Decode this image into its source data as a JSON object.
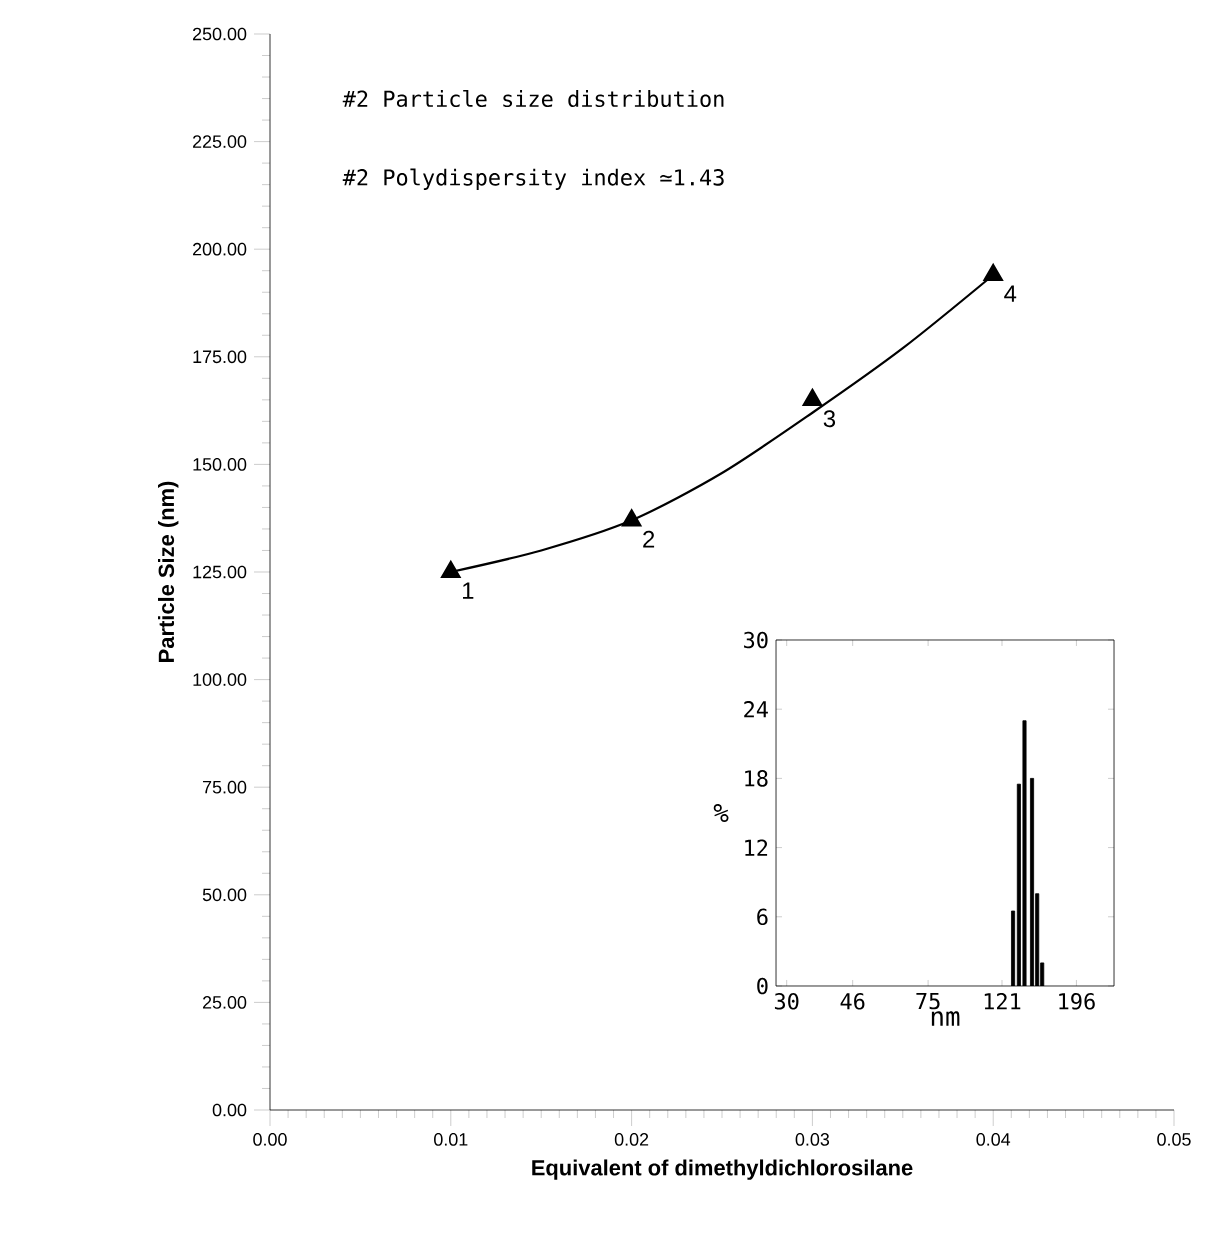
{
  "chart_data": [
    {
      "type": "scatter",
      "xlabel": "Equivalent of dimethyldichlorosilane",
      "ylabel": "Particle Size (nm)",
      "xlim": [
        0,
        0.05
      ],
      "ylim": [
        0,
        250
      ],
      "xticks": [
        {
          "value": 0,
          "label": "0.00"
        },
        {
          "value": 0.01,
          "label": "0.01"
        },
        {
          "value": 0.02,
          "label": "0.02"
        },
        {
          "value": 0.03,
          "label": "0.03"
        },
        {
          "value": 0.04,
          "label": "0.04"
        },
        {
          "value": 0.05,
          "label": "0.05"
        }
      ],
      "yticks": [
        {
          "value": 0,
          "label": "0.00"
        },
        {
          "value": 25,
          "label": "25.00"
        },
        {
          "value": 50,
          "label": "50.00"
        },
        {
          "value": 75,
          "label": "75.00"
        },
        {
          "value": 100,
          "label": "100.00"
        },
        {
          "value": 125,
          "label": "125.00"
        },
        {
          "value": 150,
          "label": "150.00"
        },
        {
          "value": 175,
          "label": "175.00"
        },
        {
          "value": 200,
          "label": "200.00"
        },
        {
          "value": 225,
          "label": "225.00"
        },
        {
          "value": 250,
          "label": "250.00"
        }
      ],
      "marker": "triangle",
      "series": [
        {
          "type": "scatter",
          "color": "#000000",
          "x": [
            0.01,
            0.02,
            0.03,
            0.04
          ],
          "values": [
            125,
            137,
            165,
            194
          ]
        },
        {
          "type": "line",
          "color": "#000000",
          "marker": "none",
          "x": [
            0.01,
            0.015,
            0.02,
            0.025,
            0.03,
            0.035,
            0.04
          ],
          "values": [
            125,
            130,
            137,
            148,
            162,
            177,
            194
          ]
        }
      ],
      "annotations": [
        "#2 Particle size distribution",
        "#2 Polydispersity index ≃1.43",
        {
          "text": "1",
          "x": 0.01,
          "y": 125
        },
        {
          "text": "2",
          "x": 0.02,
          "y": 137
        },
        {
          "text": "3",
          "x": 0.03,
          "y": 165
        },
        {
          "text": "4",
          "x": 0.04,
          "y": 194
        }
      ]
    },
    {
      "type": "bar",
      "xlabel": "nm",
      "ylabel": "%",
      "log": "x",
      "xlim": [
        28,
        250
      ],
      "ylim": [
        0,
        30
      ],
      "xticks": [
        30,
        46,
        75,
        121,
        196
      ],
      "yticks": [
        0,
        6,
        12,
        18,
        24,
        30
      ],
      "x": [
        130,
        135,
        140,
        147,
        152,
        157
      ],
      "values": [
        6.5,
        17.5,
        23,
        18,
        8,
        2
      ],
      "color": "#000000"
    }
  ]
}
